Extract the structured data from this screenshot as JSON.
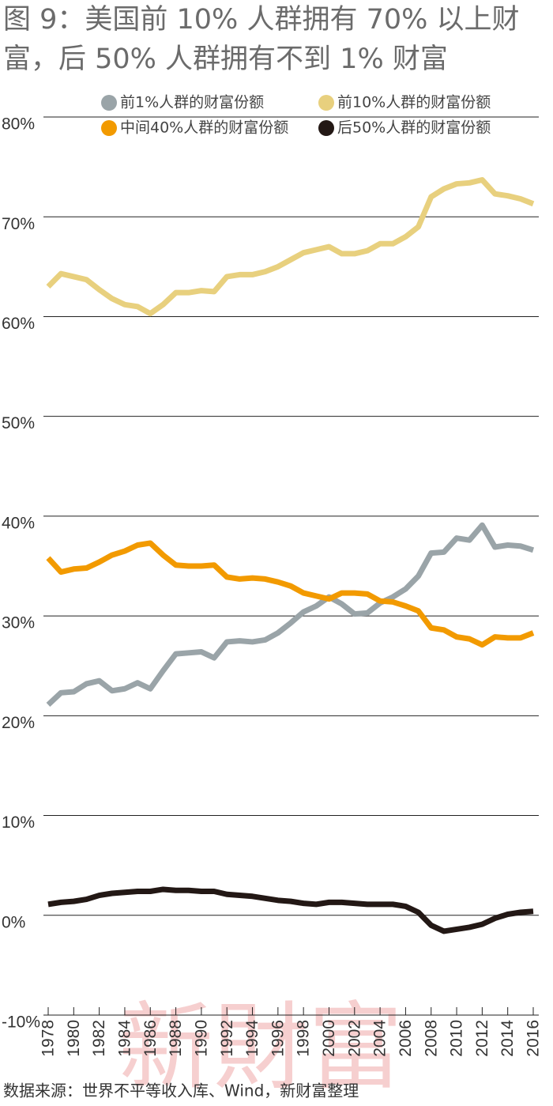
{
  "chart_data": {
    "type": "line",
    "title": "图 9：美国前 10% 人群拥有 70% 以上财富，后 50% 人群拥有不到 1% 财富",
    "x": [
      1978,
      1979,
      1980,
      1981,
      1982,
      1983,
      1984,
      1985,
      1986,
      1987,
      1988,
      1989,
      1990,
      1991,
      1992,
      1993,
      1994,
      1995,
      1996,
      1997,
      1998,
      1999,
      2000,
      2001,
      2002,
      2003,
      2004,
      2005,
      2006,
      2007,
      2008,
      2009,
      2010,
      2011,
      2012,
      2013,
      2014,
      2015,
      2016
    ],
    "xlim": [
      1978,
      2016
    ],
    "xticks": [
      1978,
      1980,
      1982,
      1984,
      1986,
      1988,
      1990,
      1992,
      1994,
      1996,
      1998,
      2000,
      2002,
      2004,
      2006,
      2008,
      2010,
      2012,
      2014,
      2016
    ],
    "ylim": [
      -10,
      80
    ],
    "yticks": [
      {
        "value": -10,
        "label": "-10%"
      },
      {
        "value": 0,
        "label": "0%"
      },
      {
        "value": 10,
        "label": "10%"
      },
      {
        "value": 20,
        "label": "20%"
      },
      {
        "value": 30,
        "label": "30%"
      },
      {
        "value": 40,
        "label": "40%"
      },
      {
        "value": 50,
        "label": "50%"
      },
      {
        "value": 60,
        "label": "60%"
      },
      {
        "value": 70,
        "label": "70%"
      },
      {
        "value": 80,
        "label": "80%"
      }
    ],
    "grid": true,
    "series": [
      {
        "name": "前1%人群的财富份额",
        "color": "#9aa4a8",
        "values": [
          21.1,
          22.3,
          22.4,
          23.2,
          23.5,
          22.5,
          22.7,
          23.3,
          22.7,
          24.5,
          26.2,
          26.3,
          26.4,
          25.8,
          27.4,
          27.5,
          27.4,
          27.6,
          28.3,
          29.3,
          30.4,
          31.0,
          31.9,
          31.2,
          30.2,
          30.3,
          31.3,
          31.9,
          32.7,
          34.0,
          36.3,
          36.4,
          37.8,
          37.6,
          39.1,
          36.9,
          37.1,
          37.0,
          36.6
        ]
      },
      {
        "name": "前10%人群的财富份额",
        "color": "#e8d07e",
        "values": [
          63.0,
          64.3,
          64.0,
          63.7,
          62.7,
          61.8,
          61.2,
          61.0,
          60.3,
          61.2,
          62.4,
          62.4,
          62.6,
          62.5,
          64.0,
          64.2,
          64.2,
          64.5,
          65.0,
          65.7,
          66.4,
          66.7,
          67.0,
          66.3,
          66.3,
          66.6,
          67.3,
          67.3,
          68.0,
          69.0,
          72.0,
          72.8,
          73.3,
          73.4,
          73.7,
          72.3,
          72.1,
          71.8,
          71.3
        ]
      },
      {
        "name": "中间40%人群的财富份额",
        "color": "#f29a00",
        "values": [
          35.8,
          34.4,
          34.7,
          34.8,
          35.4,
          36.1,
          36.5,
          37.1,
          37.3,
          36.1,
          35.1,
          35.0,
          35.0,
          35.1,
          33.9,
          33.7,
          33.8,
          33.7,
          33.4,
          33.0,
          32.3,
          32.0,
          31.7,
          32.3,
          32.3,
          32.2,
          31.5,
          31.4,
          31.0,
          30.5,
          28.8,
          28.6,
          27.9,
          27.7,
          27.1,
          27.9,
          27.8,
          27.8,
          28.3
        ]
      },
      {
        "name": "后50%人群的财富份额",
        "color": "#231815",
        "values": [
          1.1,
          1.3,
          1.4,
          1.6,
          2.0,
          2.2,
          2.3,
          2.4,
          2.4,
          2.6,
          2.5,
          2.5,
          2.4,
          2.4,
          2.1,
          2.0,
          1.9,
          1.7,
          1.5,
          1.4,
          1.2,
          1.1,
          1.3,
          1.3,
          1.2,
          1.1,
          1.1,
          1.1,
          0.9,
          0.3,
          -1.0,
          -1.6,
          -1.4,
          -1.2,
          -0.9,
          -0.3,
          0.1,
          0.3,
          0.4
        ]
      }
    ],
    "source": "数据来源：世界不平等收入库、Wind，新财富整理",
    "watermark": "新財富"
  }
}
